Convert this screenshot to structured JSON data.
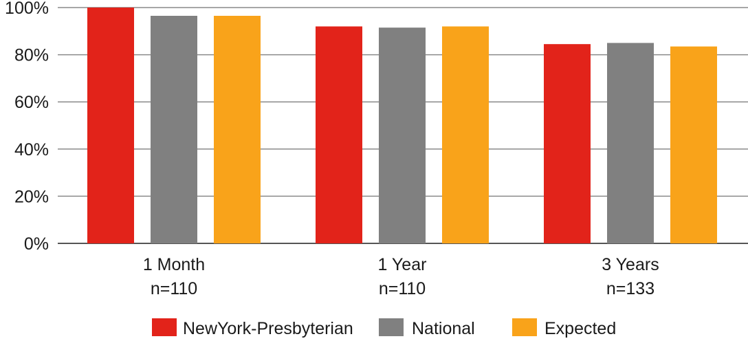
{
  "chart_data": {
    "type": "bar",
    "categories": [
      {
        "line1": "1 Month",
        "line2": "n=110"
      },
      {
        "line1": "1 Year",
        "line2": "n=110"
      },
      {
        "line1": "3 Years",
        "line2": "n=133"
      }
    ],
    "series": [
      {
        "name": "NewYork-Presbyterian",
        "color": "#e2231a",
        "values": [
          100,
          92,
          84.5
        ]
      },
      {
        "name": "National",
        "color": "#808080",
        "values": [
          96.5,
          91.5,
          85
        ]
      },
      {
        "name": "Expected",
        "color": "#f9a31a",
        "values": [
          96.5,
          92,
          83.5
        ]
      }
    ],
    "ylim": [
      0,
      100
    ],
    "yticks": [
      {
        "value": 0,
        "label": "0%"
      },
      {
        "value": 20,
        "label": "20%"
      },
      {
        "value": 40,
        "label": "40%"
      },
      {
        "value": 60,
        "label": "60%"
      },
      {
        "value": 80,
        "label": "80%"
      },
      {
        "value": 100,
        "label": "100%"
      }
    ],
    "grid": true,
    "legend_position": "bottom"
  }
}
